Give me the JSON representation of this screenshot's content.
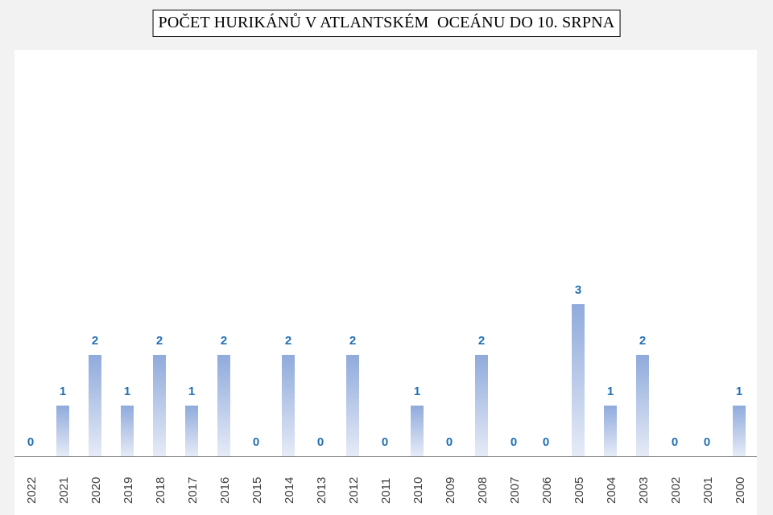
{
  "chart_data": {
    "type": "bar",
    "title": "POČET HURIKÁNŮ V ATLANTSKÉM  OCEÁNU DO 10. SRPNA",
    "xlabel": "",
    "ylabel": "",
    "categories": [
      "2022",
      "2021",
      "2020",
      "2019",
      "2018",
      "2017",
      "2016",
      "2015",
      "2014",
      "2013",
      "2012",
      "2011",
      "2010",
      "2009",
      "2008",
      "2007",
      "2006",
      "2005",
      "2004",
      "2003",
      "2002",
      "2001",
      "2000"
    ],
    "values": [
      0,
      1,
      2,
      1,
      2,
      1,
      2,
      0,
      2,
      0,
      2,
      0,
      1,
      0,
      2,
      0,
      0,
      3,
      1,
      2,
      0,
      0,
      1
    ],
    "ylim": [
      0,
      8
    ],
    "grid": false,
    "legend": "none",
    "data_labels": true,
    "colors": {
      "bar_top": "#8faadc",
      "bar_bottom": "#e6ebf7",
      "label": "#1f6fb5",
      "axis": "#7f7f7f",
      "tick_text": "#404040"
    }
  }
}
